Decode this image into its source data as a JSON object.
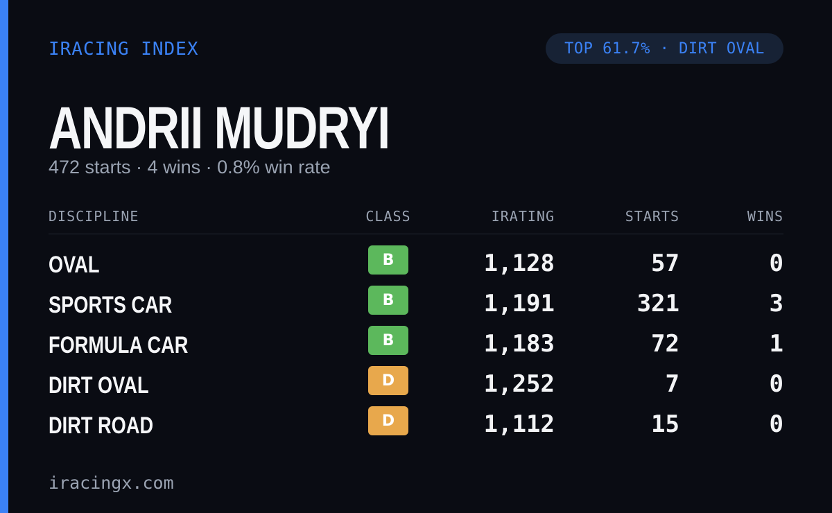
{
  "header": {
    "brand": "IRACING INDEX",
    "badge": "TOP 61.7% · DIRT OVAL"
  },
  "profile": {
    "name": "ANDRII MUDRYI",
    "summary": "472 starts · 4 wins · 0.8% win rate"
  },
  "table": {
    "columns": [
      "DISCIPLINE",
      "CLASS",
      "IRATING",
      "STARTS",
      "WINS"
    ],
    "rows": [
      {
        "discipline": "OVAL",
        "class": "B",
        "class_color": "#5cb85c",
        "irating": "1,128",
        "starts": "57",
        "wins": "0"
      },
      {
        "discipline": "SPORTS CAR",
        "class": "B",
        "class_color": "#5cb85c",
        "irating": "1,191",
        "starts": "321",
        "wins": "3"
      },
      {
        "discipline": "FORMULA CAR",
        "class": "B",
        "class_color": "#5cb85c",
        "irating": "1,183",
        "starts": "72",
        "wins": "1"
      },
      {
        "discipline": "DIRT OVAL",
        "class": "D",
        "class_color": "#e8a84c",
        "irating": "1,252",
        "starts": "7",
        "wins": "0"
      },
      {
        "discipline": "DIRT ROAD",
        "class": "D",
        "class_color": "#e8a84c",
        "irating": "1,112",
        "starts": "15",
        "wins": "0"
      }
    ]
  },
  "footer": {
    "site": "iracingx.com"
  }
}
